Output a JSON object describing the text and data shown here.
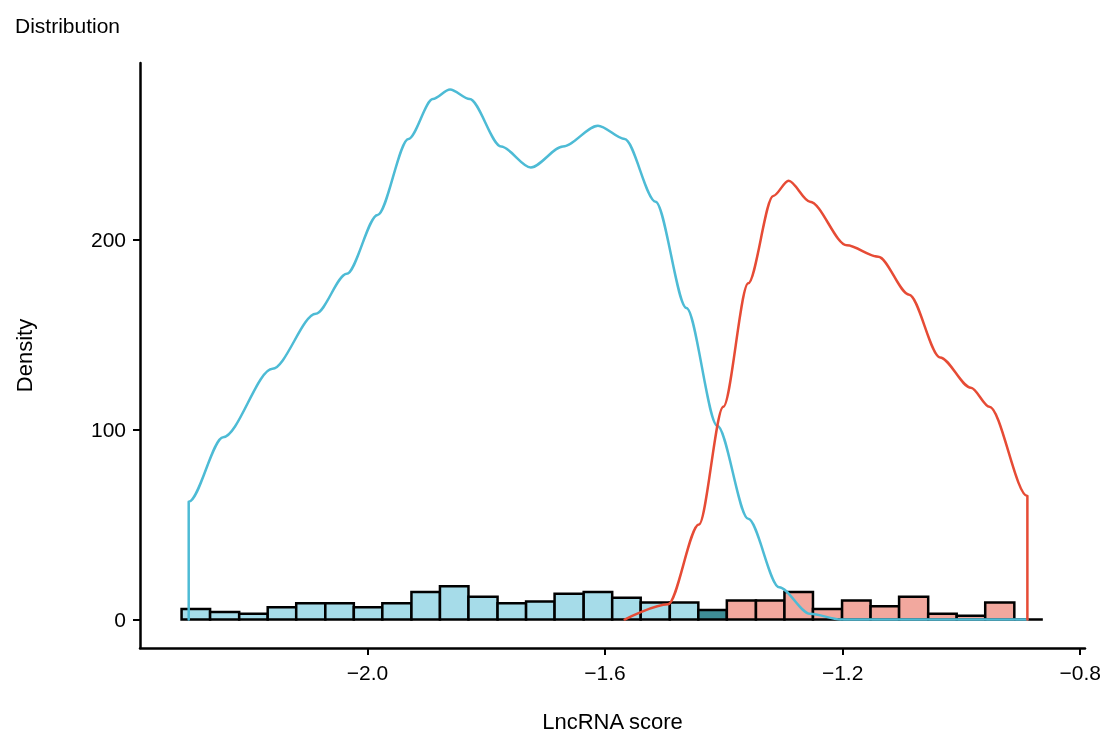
{
  "chart_data": {
    "type": "histogram",
    "title": "Distribution",
    "xlabel": "LncRNA score",
    "ylabel": "Density",
    "bins": [
      -2.313,
      -2.265,
      -2.216,
      -2.168,
      -2.12,
      -2.071,
      -2.023,
      -1.975,
      -1.926,
      -1.878,
      -1.83,
      -1.781,
      -1.733,
      -1.685,
      -1.636,
      -1.588,
      -1.54,
      -1.491,
      -1.443,
      -1.395,
      -1.346,
      -1.298,
      -1.25,
      -1.201,
      -1.153,
      -1.105,
      -1.056,
      -1.008,
      -0.96,
      -0.911,
      -0.863
    ],
    "values": [
      5.5,
      4,
      3,
      6.5,
      8.5,
      8.5,
      6.5,
      8.5,
      14.5,
      17.5,
      12,
      8.5,
      9.5,
      13.5,
      14.5,
      11.5,
      9,
      9,
      5,
      10,
      10,
      14.5,
      5.5,
      10,
      7,
      12,
      3,
      2,
      9,
      0
    ],
    "colors": [
      "#a6dce9",
      "#a6dce9",
      "#a6dce9",
      "#a6dce9",
      "#a6dce9",
      "#a6dce9",
      "#a6dce9",
      "#a6dce9",
      "#a6dce9",
      "#a6dce9",
      "#a6dce9",
      "#a6dce9",
      "#a6dce9",
      "#a6dce9",
      "#a6dce9",
      "#a6dce9",
      "#a6dce9",
      "#a6dce9",
      "#3f8d96",
      "#f2a89e",
      "#f2a89e",
      "#f2a89e",
      "#f2a89e",
      "#f2a89e",
      "#f2a89e",
      "#f2a89e",
      "#f2a89e",
      "#f2a89e",
      "#f2a89e",
      "#000000"
    ],
    "series": [
      {
        "type": "line",
        "color": "#4dbbd5",
        "x": [
          -2.301,
          -2.301,
          -2.243,
          -2.16,
          -2.087,
          -2.035,
          -1.983,
          -1.931,
          -1.89,
          -1.861,
          -1.828,
          -1.775,
          -1.725,
          -1.671,
          -1.612,
          -1.567,
          -1.515,
          -1.463,
          -1.411,
          -1.359,
          -1.307,
          -1.255,
          -1.203,
          -0.889
        ],
        "values": [
          0,
          62,
          96,
          132,
          161,
          182,
          213,
          253,
          274,
          279,
          274,
          249,
          238,
          249,
          260,
          253,
          220,
          164,
          102,
          53,
          17,
          3,
          0,
          0
        ]
      },
      {
        "type": "line",
        "color": "#e64b35",
        "x": [
          -1.567,
          -1.494,
          -1.442,
          -1.401,
          -1.359,
          -1.317,
          -1.291,
          -1.255,
          -1.193,
          -1.14,
          -1.088,
          -1.036,
          -0.984,
          -0.953,
          -0.889,
          -0.889
        ],
        "values": [
          0,
          8,
          50,
          112,
          177,
          223,
          231,
          220,
          197,
          191,
          171,
          138,
          122,
          112,
          65,
          0
        ]
      }
    ],
    "xlim": [
      -2.383,
      -0.792
    ],
    "ylim": [
      -15,
      293
    ],
    "xticks": [
      {
        "value": -2.0,
        "label": "−2.0"
      },
      {
        "value": -1.6,
        "label": "−1.6"
      },
      {
        "value": -1.2,
        "label": "−1.2"
      },
      {
        "value": -0.8,
        "label": "−0.8"
      }
    ],
    "yticks": [
      0,
      100,
      200
    ],
    "marker": "none",
    "line_style": "solid"
  }
}
